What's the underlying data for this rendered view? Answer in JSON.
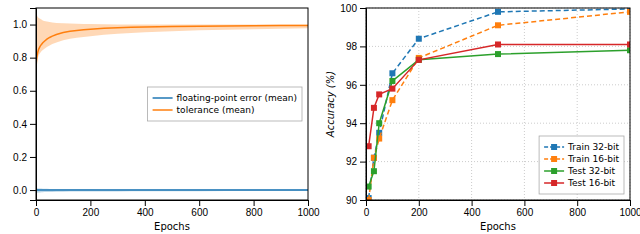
{
  "chart_data": [
    {
      "type": "line",
      "x_label": "Epochs",
      "xlim": [
        0,
        1000
      ],
      "ylim": [
        -0.06,
        1.1
      ],
      "xticks": [
        0,
        200,
        400,
        600,
        800,
        1000
      ],
      "yticks": [
        {
          "value": 0.0,
          "label": "0.0"
        },
        0.2,
        0.4,
        0.6,
        0.8,
        {
          "value": 1.0,
          "label": "1.0"
        }
      ],
      "grid": false,
      "legend": "right",
      "x": [
        1,
        2,
        3,
        4,
        5,
        7,
        10,
        15,
        20,
        25,
        30,
        40,
        50,
        60,
        75,
        100,
        125,
        150,
        175,
        200,
        250,
        300,
        350,
        400,
        450,
        500,
        600,
        700,
        800,
        900,
        1000
      ],
      "series": [
        {
          "name": "floating-point error (mean)",
          "values": [
            0.0,
            0.0,
            0.0,
            0.0,
            0.0,
            0.0,
            0.0,
            0.0,
            0.0,
            0.0,
            0.0,
            0.0,
            0.0,
            0.0,
            0.0,
            0.0,
            0.0,
            0.0,
            0.0,
            0.0,
            0.0,
            0.0,
            0.0,
            0.0,
            0.0,
            0.0,
            0.0,
            0.0,
            0.0,
            0.0,
            0.0
          ],
          "upper": [
            0.012,
            0.012,
            0.012,
            0.011,
            0.011,
            0.01,
            0.01,
            0.009,
            0.009,
            0.008,
            0.008,
            0.008,
            0.007,
            0.007,
            0.007,
            0.006,
            0.006,
            0.006,
            0.006,
            0.006,
            0.005,
            0.005,
            0.005,
            0.005,
            0.005,
            0.005,
            0.005,
            0.005,
            0.005,
            0.005,
            0.005
          ],
          "lower": [
            -0.018,
            -0.017,
            -0.017,
            -0.016,
            -0.016,
            -0.015,
            -0.015,
            -0.014,
            -0.013,
            -0.013,
            -0.012,
            -0.012,
            -0.011,
            -0.011,
            -0.01,
            -0.01,
            -0.009,
            -0.009,
            -0.009,
            -0.008,
            -0.008,
            -0.008,
            -0.007,
            -0.007,
            -0.007,
            -0.007,
            -0.007,
            -0.006,
            -0.006,
            -0.006,
            -0.006
          ]
        },
        {
          "name": "tolerance (mean)",
          "values": [
            0.76,
            0.785,
            0.8,
            0.812,
            0.822,
            0.836,
            0.852,
            0.868,
            0.88,
            0.89,
            0.898,
            0.912,
            0.922,
            0.93,
            0.94,
            0.952,
            0.959,
            0.964,
            0.968,
            0.972,
            0.977,
            0.981,
            0.983,
            0.985,
            0.987,
            0.988,
            0.99,
            0.992,
            0.993,
            0.994,
            0.995
          ],
          "upper": [
            1.09,
            1.07,
            1.06,
            1.055,
            1.05,
            1.045,
            1.04,
            1.035,
            1.03,
            1.025,
            1.022,
            1.018,
            1.015,
            1.012,
            1.01,
            1.008,
            1.006,
            1.005,
            1.004,
            1.003,
            1.002,
            1.001,
            1.001,
            1.0,
            1.0,
            1.0,
            1.0,
            1.0,
            1.0,
            1.0,
            1.0
          ],
          "lower": [
            0.74,
            0.755,
            0.768,
            0.778,
            0.787,
            0.8,
            0.815,
            0.828,
            0.838,
            0.846,
            0.853,
            0.865,
            0.874,
            0.882,
            0.892,
            0.905,
            0.914,
            0.92,
            0.925,
            0.93,
            0.938,
            0.944,
            0.949,
            0.953,
            0.957,
            0.96,
            0.965,
            0.969,
            0.972,
            0.975,
            0.977
          ]
        }
      ]
    },
    {
      "type": "line",
      "x_label": "Epochs",
      "y_label": "Accuracy (%)",
      "xlim": [
        0,
        1000
      ],
      "ylim": [
        90,
        100
      ],
      "xticks": [
        0,
        200,
        400,
        600,
        800,
        1000
      ],
      "yticks": [
        90,
        92,
        94,
        96,
        98,
        100
      ],
      "grid": true,
      "legend": "lower right",
      "x": [
        10,
        30,
        50,
        100,
        200,
        500,
        1000
      ],
      "series": [
        {
          "name": "Train 32-bit",
          "line_style": "dashed",
          "marker": "square",
          "values": [
            90.1,
            92.2,
            93.5,
            96.6,
            98.4,
            99.8,
            99.95
          ]
        },
        {
          "name": "Train 16-bit",
          "line_style": "dashed",
          "marker": "square",
          "values": [
            90.0,
            92.2,
            93.2,
            95.2,
            97.4,
            99.1,
            99.8
          ]
        },
        {
          "name": "Test 32-bit",
          "line_style": "solid",
          "marker": "square",
          "values": [
            90.7,
            91.5,
            94.0,
            96.2,
            97.3,
            97.6,
            97.8
          ]
        },
        {
          "name": "Test 16-bit",
          "line_style": "solid",
          "marker": "square",
          "values": [
            92.8,
            94.8,
            95.5,
            95.8,
            97.3,
            98.1,
            98.1
          ]
        }
      ]
    }
  ]
}
